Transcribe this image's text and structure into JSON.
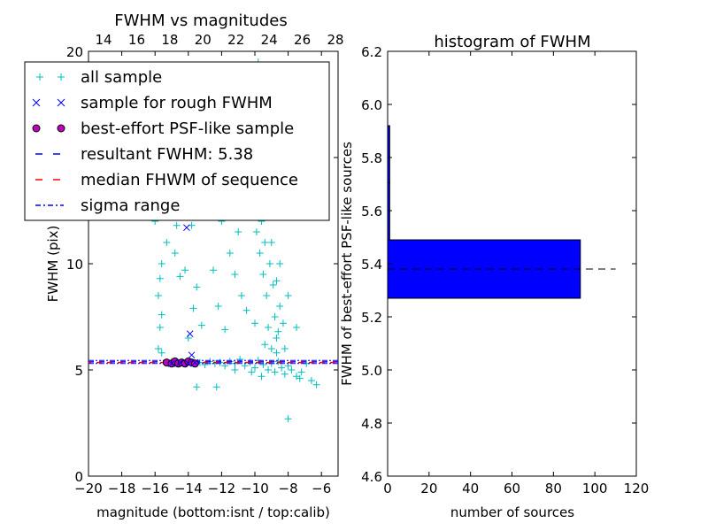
{
  "chart_data": [
    {
      "type": "scatter",
      "title": "FWHM vs magnitudes",
      "xlabel": "magnitude (bottom:isnt / top:calib)",
      "ylabel": "FWHM (pix)",
      "xlim": [
        -20,
        -5
      ],
      "ylim": [
        0,
        20
      ],
      "top_xlim": [
        13.09,
        28.16
      ],
      "xticks": [
        "−20",
        "−18",
        "−16",
        "−14",
        "−12",
        "−10",
        "−8",
        "−6"
      ],
      "xtick_values": [
        -20,
        -18,
        -16,
        -14,
        -12,
        -10,
        -8,
        -6
      ],
      "top_xticks": [
        "14",
        "16",
        "18",
        "20",
        "22",
        "24",
        "26",
        "28"
      ],
      "top_xtick_values": [
        14,
        16,
        18,
        20,
        22,
        24,
        26,
        28
      ],
      "yticks": [
        "0",
        "5",
        "10",
        "15",
        "20"
      ],
      "ytick_values": [
        0,
        5,
        10,
        15,
        20
      ],
      "legend_position": "top-left",
      "legend": [
        {
          "label": "all sample",
          "marker": "+",
          "color": "#00bfbf"
        },
        {
          "label": "sample for rough FWHM",
          "marker": "x",
          "color": "#0000ff"
        },
        {
          "label": "best-effort PSF-like sample",
          "marker": "o",
          "color": "#bf00bf"
        },
        {
          "label": "resultant FWHM: 5.38",
          "line": "dashed",
          "color": "#0000ff"
        },
        {
          "label": "median FHWM of sequence",
          "line": "dashed",
          "color": "#ff0000"
        },
        {
          "label": "sigma range",
          "line": "dashdot",
          "color": "#0000ff"
        }
      ],
      "resultant_fwhm": 5.38,
      "median_fwhm": 5.35,
      "sigma_range": [
        5.3,
        5.45
      ],
      "all_sample": [
        [
          -15.4,
          5.35
        ],
        [
          -15.2,
          5.3
        ],
        [
          -15,
          5.4
        ],
        [
          -14.8,
          5.3
        ],
        [
          -14.5,
          5.35
        ],
        [
          -14.2,
          5.3
        ],
        [
          -13.9,
          5.4
        ],
        [
          -13.6,
          5.3
        ],
        [
          -13.3,
          5.35
        ],
        [
          -13,
          5.25
        ],
        [
          -12.7,
          5.4
        ],
        [
          -12.4,
          5.3
        ],
        [
          -12.1,
          5.35
        ],
        [
          -11.8,
          5.2
        ],
        [
          -11.5,
          5.4
        ],
        [
          -11.2,
          5.3
        ],
        [
          -10.9,
          5.5
        ],
        [
          -10.6,
          5.2
        ],
        [
          -10.3,
          5.35
        ],
        [
          -10,
          5.1
        ],
        [
          -9.8,
          5.45
        ],
        [
          -9.5,
          5.25
        ],
        [
          -9.2,
          5.0
        ],
        [
          -9,
          5.3
        ],
        [
          -8.8,
          4.9
        ],
        [
          -8.6,
          5.4
        ],
        [
          -8.4,
          5.1
        ],
        [
          -8.2,
          4.8
        ],
        [
          -8,
          5.2
        ],
        [
          -7.8,
          5.0
        ],
        [
          -7.5,
          4.7
        ],
        [
          -7.2,
          4.9
        ],
        [
          -6.9,
          5.3
        ],
        [
          -6.6,
          4.5
        ],
        [
          -6.3,
          4.3
        ],
        [
          -7.3,
          4.6
        ],
        [
          -13.5,
          4.2
        ],
        [
          -12.3,
          4.2
        ],
        [
          -8,
          2.7
        ],
        [
          -11.2,
          5.0
        ],
        [
          -10.2,
          4.9
        ],
        [
          -9.6,
          4.7
        ],
        [
          -9,
          6
        ],
        [
          -8.7,
          6.5
        ],
        [
          -9.2,
          7
        ],
        [
          -8.8,
          7.5
        ],
        [
          -8.5,
          8
        ],
        [
          -9.3,
          8.5
        ],
        [
          -8.9,
          9
        ],
        [
          -9.5,
          9.5
        ],
        [
          -9.1,
          10
        ],
        [
          -9.7,
          10.5
        ],
        [
          -9.4,
          11
        ],
        [
          -9.9,
          11.5
        ],
        [
          -9.6,
          12
        ],
        [
          -10.1,
          12.5
        ],
        [
          -9.8,
          13
        ],
        [
          -10.3,
          13.5
        ],
        [
          -10,
          14
        ],
        [
          -10.4,
          15
        ],
        [
          -10.2,
          16
        ],
        [
          -9.9,
          17
        ],
        [
          -9.6,
          18
        ],
        [
          -9.8,
          19.5
        ],
        [
          -8.6,
          6.8
        ],
        [
          -8.3,
          7.2
        ],
        [
          -8.7,
          5.8
        ],
        [
          -9.4,
          6.2
        ],
        [
          -10,
          7.2
        ],
        [
          -10.5,
          7.8
        ],
        [
          -10.8,
          8.5
        ],
        [
          -11.2,
          9.5
        ],
        [
          -11.5,
          10.5
        ],
        [
          -11,
          11.5
        ],
        [
          -11.3,
          12.5
        ],
        [
          -10.7,
          13
        ],
        [
          -8.2,
          6
        ],
        [
          -7.5,
          7
        ],
        [
          -8,
          8.5
        ],
        [
          -9,
          11
        ],
        [
          -9.3,
          12.5
        ],
        [
          -8.8,
          13
        ],
        [
          -9.2,
          14.5
        ],
        [
          -8.8,
          16
        ],
        [
          -9.4,
          15.5
        ],
        [
          -11.8,
          6.9
        ],
        [
          -12.2,
          8
        ],
        [
          -12.5,
          9.7
        ],
        [
          -13,
          13
        ],
        [
          -12,
          12
        ],
        [
          -8.5,
          10
        ],
        [
          -8.7,
          9.2
        ],
        [
          -15.8,
          6
        ],
        [
          -15.7,
          7
        ],
        [
          -15.6,
          7.6
        ],
        [
          -15.8,
          8.5
        ],
        [
          -15.7,
          9.3
        ],
        [
          -15.6,
          10
        ],
        [
          -15.5,
          12.2
        ],
        [
          -15.8,
          12.5
        ],
        [
          -16,
          12
        ],
        [
          -15.3,
          11
        ],
        [
          -14.8,
          10.5
        ],
        [
          -14.5,
          9.4
        ],
        [
          -14.2,
          9.7
        ],
        [
          -14.7,
          11.8
        ],
        [
          -13.8,
          11.8
        ],
        [
          -13.5,
          8.9
        ],
        [
          -13.2,
          7.1
        ],
        [
          -13.7,
          7.9
        ],
        [
          -14,
          6.5
        ],
        [
          -15.6,
          5.8
        ]
      ],
      "rough_sample": [
        [
          -14.1,
          11.7
        ],
        [
          -13.9,
          6.7
        ],
        [
          -13.8,
          5.7
        ],
        [
          -15,
          5.3
        ],
        [
          -14.5,
          5.35
        ],
        [
          -14,
          5.3
        ],
        [
          -13.6,
          5.35
        ]
      ],
      "best_effort_sample": [
        [
          -15.3,
          5.35
        ],
        [
          -15,
          5.3
        ],
        [
          -14.8,
          5.4
        ],
        [
          -14.6,
          5.3
        ],
        [
          -14.4,
          5.35
        ],
        [
          -14.2,
          5.3
        ],
        [
          -14,
          5.4
        ],
        [
          -13.8,
          5.35
        ],
        [
          -13.6,
          5.3
        ]
      ]
    },
    {
      "type": "bar",
      "orientation": "horizontal",
      "title": "histogram of FWHM",
      "xlabel": "number of sources",
      "ylabel": "FWHM of best-effort PSF-like sources",
      "xlim": [
        0,
        120
      ],
      "ylim": [
        4.6,
        6.2
      ],
      "xticks": [
        "0",
        "20",
        "40",
        "60",
        "80",
        "100",
        "120"
      ],
      "xtick_values": [
        0,
        20,
        40,
        60,
        80,
        100,
        120
      ],
      "yticks": [
        "4.6",
        "4.8",
        "5.0",
        "5.2",
        "5.4",
        "5.6",
        "5.8",
        "6.0",
        "6.2"
      ],
      "ytick_values": [
        4.6,
        4.8,
        5.0,
        5.2,
        5.4,
        5.6,
        5.8,
        6.0,
        6.2
      ],
      "bins": [
        [
          5.27,
          5.49
        ],
        [
          5.49,
          5.705
        ],
        [
          5.705,
          5.92
        ]
      ],
      "values": [
        93,
        1,
        1
      ],
      "bar_color": "#0000ff",
      "resultant_line": {
        "value": 5.38,
        "x_range": [
          0,
          110
        ],
        "style": "dashed"
      }
    }
  ]
}
